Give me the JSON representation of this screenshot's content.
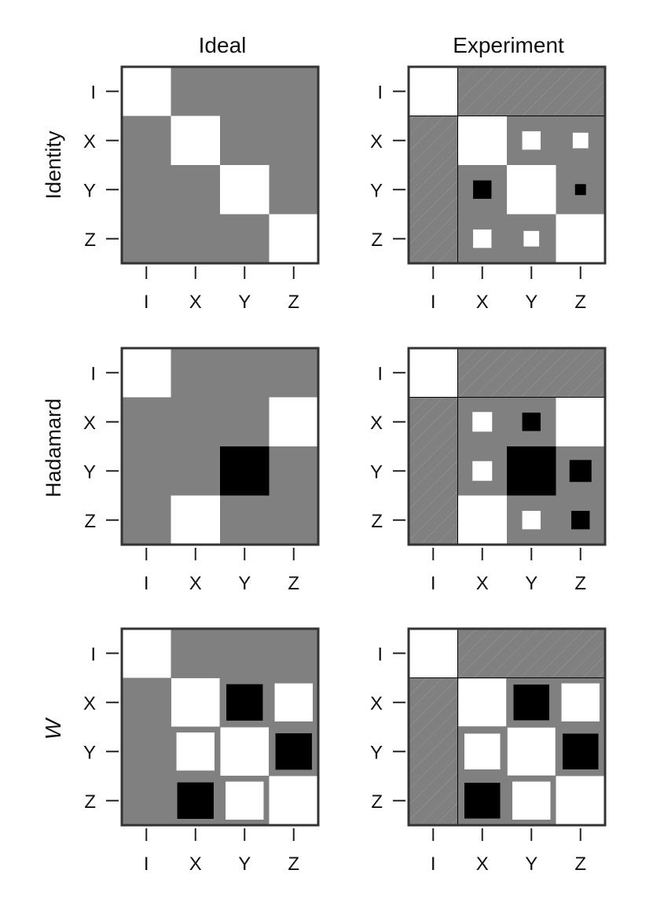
{
  "column_titles": [
    "Ideal",
    "Experiment"
  ],
  "row_titles": [
    "Identity",
    "Hadamard",
    "W"
  ],
  "colors": {
    "background_cell": "#808080",
    "positive": "#ffffff",
    "negative": "#000000",
    "frame": "#333333",
    "hatch": "#9a9a9a"
  },
  "chart_data": [
    {
      "type": "hinton",
      "title": "Ideal",
      "row_label": "Identity",
      "xlabels": [
        "I",
        "X",
        "Y",
        "Z"
      ],
      "ylabels": [
        "I",
        "X",
        "Y",
        "Z"
      ],
      "hatched_first_row_col": false,
      "matrix": [
        [
          1,
          0,
          0,
          0
        ],
        [
          0,
          1,
          0,
          0
        ],
        [
          0,
          0,
          1,
          0
        ],
        [
          0,
          0,
          0,
          1
        ]
      ]
    },
    {
      "type": "hinton",
      "title": "Experiment",
      "row_label": "Identity",
      "xlabels": [
        "I",
        "X",
        "Y",
        "Z"
      ],
      "ylabels": [
        "I",
        "X",
        "Y",
        "Z"
      ],
      "hatched_first_row_col": true,
      "matrix": [
        [
          1,
          0,
          0,
          0
        ],
        [
          0,
          1,
          0.14,
          0.1
        ],
        [
          0,
          -0.14,
          1,
          -0.05
        ],
        [
          0,
          0.14,
          0.1,
          1
        ]
      ]
    },
    {
      "type": "hinton",
      "title": "Ideal",
      "row_label": "Hadamard",
      "xlabels": [
        "I",
        "X",
        "Y",
        "Z"
      ],
      "ylabels": [
        "I",
        "X",
        "Y",
        "Z"
      ],
      "hatched_first_row_col": false,
      "matrix": [
        [
          1,
          0,
          0,
          0
        ],
        [
          0,
          0,
          0,
          1
        ],
        [
          0,
          0,
          -1,
          0
        ],
        [
          0,
          1,
          0,
          0
        ]
      ]
    },
    {
      "type": "hinton",
      "title": "Experiment",
      "row_label": "Hadamard",
      "xlabels": [
        "I",
        "X",
        "Y",
        "Z"
      ],
      "ylabels": [
        "I",
        "X",
        "Y",
        "Z"
      ],
      "hatched_first_row_col": true,
      "matrix": [
        [
          1,
          0,
          0,
          0
        ],
        [
          0,
          0.16,
          -0.14,
          1
        ],
        [
          0,
          0.16,
          -1,
          -0.2
        ],
        [
          0,
          1,
          0.14,
          -0.14
        ]
      ]
    },
    {
      "type": "hinton",
      "title": "Ideal",
      "row_label": "W",
      "xlabels": [
        "I",
        "X",
        "Y",
        "Z"
      ],
      "ylabels": [
        "I",
        "X",
        "Y",
        "Z"
      ],
      "hatched_first_row_col": false,
      "matrix": [
        [
          1,
          0,
          0,
          0
        ],
        [
          0,
          0.97,
          -0.55,
          0.6
        ],
        [
          0,
          0.6,
          0.97,
          -0.55
        ],
        [
          0,
          -0.55,
          0.6,
          1
        ]
      ]
    },
    {
      "type": "hinton",
      "title": "Experiment",
      "row_label": "W",
      "xlabels": [
        "I",
        "X",
        "Y",
        "Z"
      ],
      "ylabels": [
        "I",
        "X",
        "Y",
        "Z"
      ],
      "hatched_first_row_col": true,
      "matrix": [
        [
          1,
          0,
          0,
          0
        ],
        [
          0,
          0.95,
          -0.53,
          0.6
        ],
        [
          0,
          0.53,
          0.95,
          -0.53
        ],
        [
          0,
          -0.53,
          0.6,
          1
        ]
      ]
    }
  ]
}
